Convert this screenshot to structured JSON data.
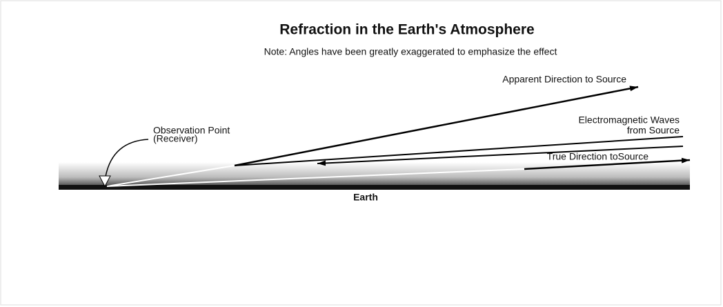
{
  "title": "Refraction in the Earth's Atmosphere",
  "note": "Note:  Angles have been greatly exaggerated to emphasize the effect",
  "labels": {
    "apparent": "Apparent Direction to Source",
    "waves_line1": "Electromagnetic Waves",
    "waves_line2": "from Source",
    "true_direction": "True Direction toSource",
    "observation_line1": "Observation Point",
    "observation_line2": "(Receiver)",
    "earth": "Earth"
  }
}
